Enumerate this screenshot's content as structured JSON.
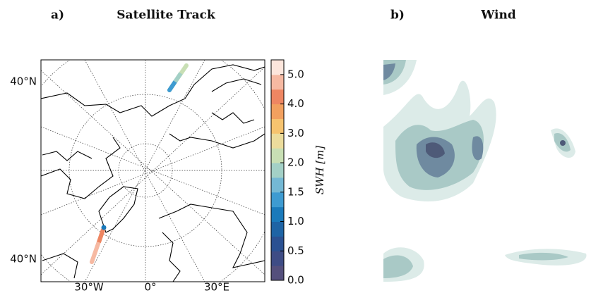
{
  "panels": [
    {
      "label": "a)",
      "title": "Satellite Track",
      "y_labels": [
        "40°N",
        "40°N"
      ],
      "x_labels": [
        "30°W",
        "0°",
        "30°E"
      ],
      "colorbar": {
        "label": "SWH [m]",
        "levels": [
          0,
          0.25,
          0.5,
          0.75,
          1.0,
          1.25,
          1.5,
          1.75,
          2.0,
          2.5,
          3.0,
          3.5,
          4.0,
          4.5,
          5.0,
          5.5
        ],
        "colors": [
          "#544f7c",
          "#3e4c85",
          "#2b5192",
          "#1e64a5",
          "#1a7abb",
          "#3e9bd1",
          "#74b8d4",
          "#a3d0c6",
          "#c8dfb4",
          "#ecdc9c",
          "#f6c36f",
          "#f2a05f",
          "#ee8662",
          "#f6b9a2",
          "#fde6dc"
        ],
        "ticks": [
          {
            "value": 0,
            "label": "0.0"
          },
          {
            "value": 0.5,
            "label": "0.5"
          },
          {
            "value": 1.0,
            "label": "1.0"
          },
          {
            "value": 1.5,
            "label": "1.5"
          },
          {
            "value": 2.0,
            "label": "2.0"
          },
          {
            "value": 3.0,
            "label": "3.0"
          },
          {
            "value": 4.0,
            "label": "4.0"
          },
          {
            "value": 5.0,
            "label": "5.0"
          }
        ]
      }
    },
    {
      "label": "b)",
      "title": "Wind"
    }
  ]
}
